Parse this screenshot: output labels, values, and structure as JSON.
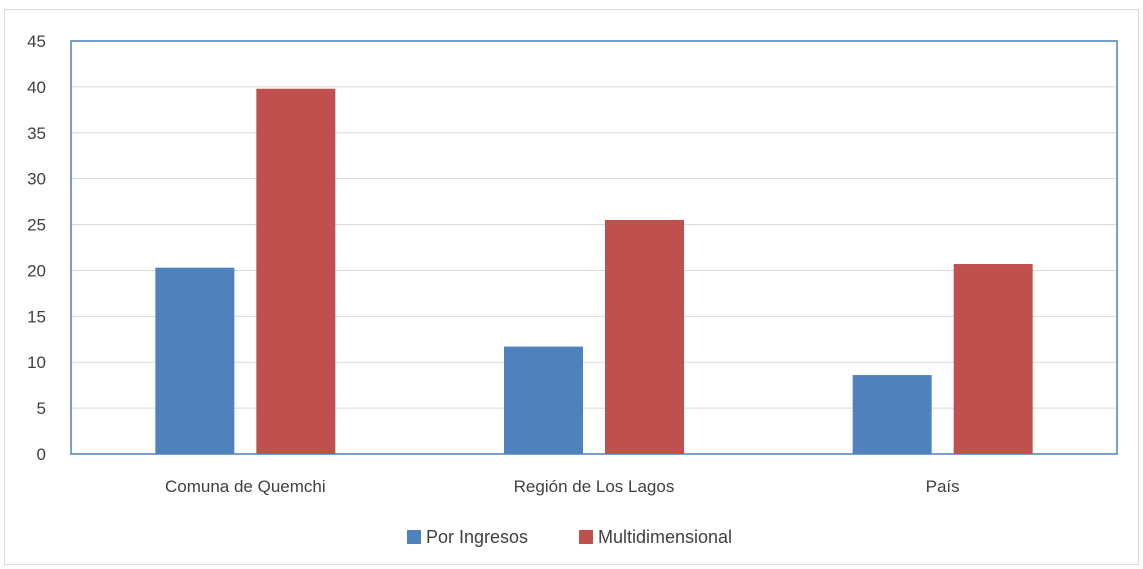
{
  "chart_data": {
    "type": "bar",
    "title": "",
    "xlabel": "",
    "ylabel": "",
    "categories": [
      "Comuna de Quemchi",
      "Región de Los Lagos",
      "País"
    ],
    "series": [
      {
        "name": "Por Ingresos",
        "color": "#4f81bd",
        "values": [
          20.3,
          11.7,
          8.6
        ]
      },
      {
        "name": "Multidimensional",
        "color": "#c0504d",
        "values": [
          39.8,
          25.5,
          20.7
        ]
      }
    ],
    "ylim": [
      0,
      45
    ],
    "yticks": [
      "0",
      "5",
      "10",
      "15",
      "20",
      "25",
      "30",
      "35",
      "40",
      "45"
    ],
    "grid": true,
    "legend_position": "bottom"
  }
}
